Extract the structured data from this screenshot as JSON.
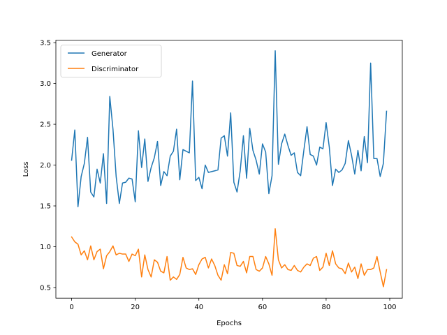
{
  "chart_data": {
    "type": "line",
    "xlabel": "Epochs",
    "ylabel": "Loss",
    "xlim": [
      -4.95,
      103.95
    ],
    "ylim": [
      0.37,
      3.53
    ],
    "xticks": [
      0,
      20,
      40,
      60,
      80,
      100
    ],
    "yticks": [
      0.5,
      1.0,
      1.5,
      2.0,
      2.5,
      3.0,
      3.5
    ],
    "xtick_labels": [
      "0",
      "20",
      "40",
      "60",
      "80",
      "100"
    ],
    "ytick_labels": [
      "0.5",
      "1.0",
      "1.5",
      "2.0",
      "2.5",
      "3.0",
      "3.5"
    ],
    "grid": false,
    "legend_position": "upper-left",
    "colors": {
      "Generator": "#1f77b4",
      "Discriminator": "#ff7f0e"
    },
    "x": [
      0,
      1,
      2,
      3,
      4,
      5,
      6,
      7,
      8,
      9,
      10,
      11,
      12,
      13,
      14,
      15,
      16,
      17,
      18,
      19,
      20,
      21,
      22,
      23,
      24,
      25,
      26,
      27,
      28,
      29,
      30,
      31,
      32,
      33,
      34,
      35,
      36,
      37,
      38,
      39,
      40,
      41,
      42,
      43,
      44,
      45,
      46,
      47,
      48,
      49,
      50,
      51,
      52,
      53,
      54,
      55,
      56,
      57,
      58,
      59,
      60,
      61,
      62,
      63,
      64,
      65,
      66,
      67,
      68,
      69,
      70,
      71,
      72,
      73,
      74,
      75,
      76,
      77,
      78,
      79,
      80,
      81,
      82,
      83,
      84,
      85,
      86,
      87,
      88,
      89,
      90,
      91,
      92,
      93,
      94,
      95,
      96,
      97,
      98,
      99
    ],
    "series": [
      {
        "name": "Generator",
        "values": [
          2.06,
          2.43,
          1.49,
          1.86,
          2.02,
          2.34,
          1.67,
          1.61,
          1.95,
          1.78,
          2.14,
          1.53,
          2.84,
          2.44,
          1.86,
          1.53,
          1.78,
          1.79,
          1.84,
          1.83,
          1.55,
          2.42,
          1.97,
          2.32,
          1.8,
          1.97,
          2.09,
          2.29,
          1.75,
          1.92,
          1.87,
          2.11,
          2.17,
          2.44,
          1.82,
          2.19,
          2.17,
          2.15,
          3.03,
          1.81,
          1.85,
          1.71,
          2.0,
          1.91,
          1.92,
          1.93,
          1.94,
          2.33,
          2.36,
          2.11,
          2.64,
          1.79,
          1.67,
          1.93,
          2.36,
          1.84,
          2.45,
          2.18,
          2.06,
          1.89,
          2.26,
          2.16,
          1.65,
          1.87,
          3.4,
          2.01,
          2.26,
          2.38,
          2.24,
          2.12,
          2.15,
          1.91,
          1.87,
          2.18,
          2.47,
          2.13,
          2.11,
          2.0,
          2.22,
          2.2,
          2.52,
          2.22,
          1.75,
          1.95,
          1.91,
          1.94,
          2.02,
          2.3,
          2.12,
          1.89,
          2.18,
          1.93,
          2.35,
          2.03,
          3.25,
          2.08,
          2.08,
          1.86,
          2.02,
          2.66
        ]
      },
      {
        "name": "Discriminator",
        "values": [
          1.12,
          1.06,
          1.03,
          0.9,
          0.95,
          0.84,
          1.01,
          0.84,
          0.94,
          0.97,
          0.73,
          0.89,
          0.94,
          1.01,
          0.9,
          0.92,
          0.91,
          0.91,
          0.82,
          0.91,
          0.89,
          0.97,
          0.63,
          0.9,
          0.72,
          0.63,
          0.84,
          0.81,
          0.7,
          0.68,
          0.88,
          0.59,
          0.63,
          0.6,
          0.66,
          0.87,
          0.74,
          0.72,
          0.73,
          0.66,
          0.78,
          0.85,
          0.87,
          0.74,
          0.85,
          0.77,
          0.65,
          0.59,
          0.78,
          0.67,
          0.93,
          0.92,
          0.77,
          0.76,
          0.82,
          0.68,
          0.88,
          0.88,
          0.72,
          0.7,
          0.74,
          0.88,
          0.79,
          0.65,
          1.22,
          0.84,
          0.74,
          0.78,
          0.72,
          0.71,
          0.77,
          0.71,
          0.69,
          0.75,
          0.79,
          0.77,
          0.86,
          0.88,
          0.71,
          0.75,
          0.92,
          0.77,
          0.95,
          0.79,
          0.74,
          0.73,
          0.67,
          0.8,
          0.69,
          0.75,
          0.61,
          0.79,
          0.65,
          0.72,
          0.72,
          0.74,
          0.88,
          0.69,
          0.51,
          0.72
        ]
      }
    ]
  }
}
